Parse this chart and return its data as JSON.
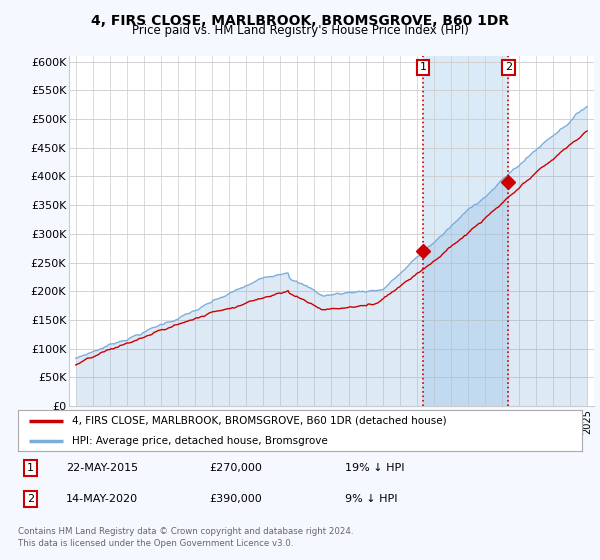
{
  "title": "4, FIRS CLOSE, MARLBROOK, BROMSGROVE, B60 1DR",
  "subtitle": "Price paid vs. HM Land Registry's House Price Index (HPI)",
  "ylabel_ticks": [
    "£0",
    "£50K",
    "£100K",
    "£150K",
    "£200K",
    "£250K",
    "£300K",
    "£350K",
    "£400K",
    "£450K",
    "£500K",
    "£550K",
    "£600K"
  ],
  "ytick_values": [
    0,
    50000,
    100000,
    150000,
    200000,
    250000,
    300000,
    350000,
    400000,
    450000,
    500000,
    550000,
    600000
  ],
  "ylim": [
    0,
    610000
  ],
  "sale1": {
    "date_num": 2015.38,
    "price": 270000,
    "label": "1"
  },
  "sale2": {
    "date_num": 2020.37,
    "price": 390000,
    "label": "2"
  },
  "vline_color": "#cc0000",
  "hpi_color": "#7aaddc",
  "hpi_fill_color": "#daeaf6",
  "price_color": "#cc0000",
  "dot_color": "#cc0000",
  "legend_entry1": "4, FIRS CLOSE, MARLBROOK, BROMSGROVE, B60 1DR (detached house)",
  "legend_entry2": "HPI: Average price, detached house, Bromsgrove",
  "annotation1": [
    "22-MAY-2015",
    "£270,000",
    "19% ↓ HPI"
  ],
  "annotation2": [
    "14-MAY-2020",
    "£390,000",
    "9% ↓ HPI"
  ],
  "footer": [
    "Contains HM Land Registry data © Crown copyright and database right 2024.",
    "This data is licensed under the Open Government Licence v3.0."
  ],
  "bg_color": "#f5f9ff",
  "plot_bg": "#ffffff",
  "grid_color": "#cccccc",
  "span_color": "#daeaf6"
}
